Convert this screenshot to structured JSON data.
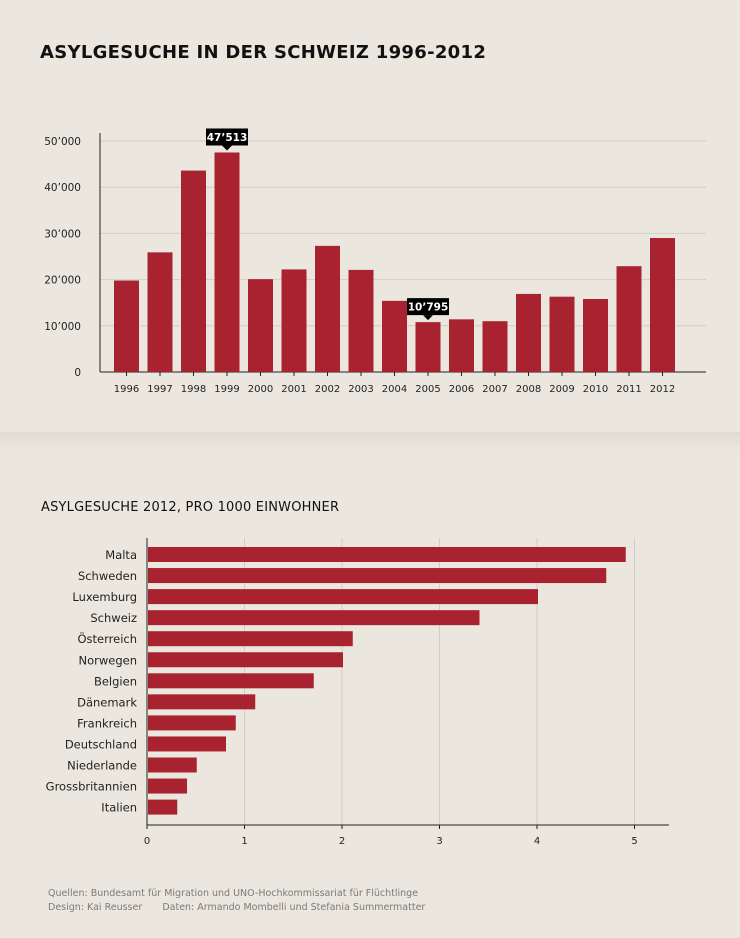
{
  "title": "ASYLGESUCHE IN DER SCHWEIZ 1996-2012",
  "subtitle": "ASYLGESUCHE 2012, PRO 1000 EINWOHNER",
  "footer": {
    "sources": "Quellen: Bundesamt für Migration und UNO-Hochkommissariat für Flüchtlinge",
    "design": "Design: Kai Reusser",
    "data": "Daten: Armando Mombelli und Stefania Summermatter"
  },
  "colors": {
    "bar": "#a8232f",
    "background": "#ebe7df",
    "callout": "#000000"
  },
  "chart_data": [
    {
      "type": "bar",
      "orientation": "vertical",
      "categories": [
        "1996",
        "1997",
        "1998",
        "1999",
        "2000",
        "2001",
        "2002",
        "2003",
        "2004",
        "2005",
        "2006",
        "2007",
        "2008",
        "2009",
        "2010",
        "2011",
        "2012"
      ],
      "values": [
        19800,
        25900,
        43600,
        47513,
        20100,
        22200,
        27300,
        22100,
        15400,
        10795,
        11400,
        11000,
        16900,
        16300,
        15800,
        22900,
        29000
      ],
      "ylim": [
        0,
        50000
      ],
      "yticks": [
        0,
        10000,
        20000,
        30000,
        40000,
        50000
      ],
      "ytick_labels": [
        "0",
        "10’000",
        "20’000",
        "30’000",
        "40’000",
        "50’000"
      ],
      "grid": true,
      "annotations": [
        {
          "category": "1999",
          "label": "47’513"
        },
        {
          "category": "2005",
          "label": "10’795"
        }
      ]
    },
    {
      "type": "bar",
      "orientation": "horizontal",
      "categories": [
        "Malta",
        "Schweden",
        "Luxemburg",
        "Schweiz",
        "Österreich",
        "Norwegen",
        "Belgien",
        "Dänemark",
        "Frankreich",
        "Deutschland",
        "Niederlande",
        "Grossbritannien",
        "Italien"
      ],
      "values": [
        4.9,
        4.7,
        4.0,
        3.4,
        2.1,
        2.0,
        1.7,
        1.1,
        0.9,
        0.8,
        0.5,
        0.4,
        0.3
      ],
      "xlim": [
        0,
        5.3
      ],
      "xticks": [
        0,
        1,
        2,
        3,
        4,
        5
      ],
      "xtick_labels": [
        "0",
        "1",
        "2",
        "3",
        "4",
        "5"
      ],
      "grid": true
    }
  ]
}
